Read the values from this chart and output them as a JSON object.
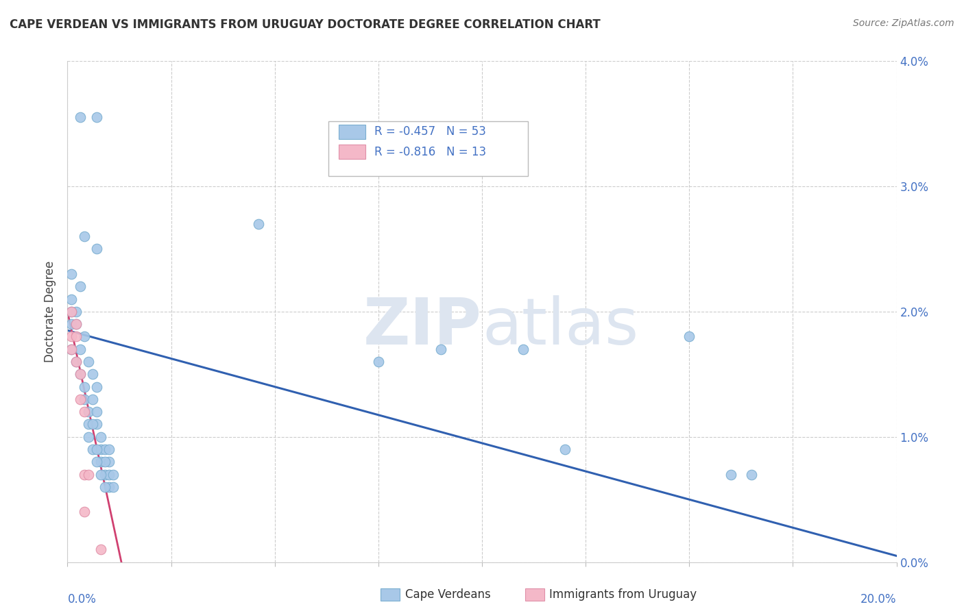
{
  "title": "CAPE VERDEAN VS IMMIGRANTS FROM URUGUAY DOCTORATE DEGREE CORRELATION CHART",
  "source": "Source: ZipAtlas.com",
  "ylabel": "Doctorate Degree",
  "xlim": [
    0.0,
    0.2
  ],
  "ylim": [
    0.0,
    0.04
  ],
  "watermark": "ZIPatlas",
  "blue_color": "#a8c8e8",
  "pink_color": "#f4b8c8",
  "blue_edge_color": "#7aaed0",
  "pink_edge_color": "#e090a8",
  "blue_line_color": "#3060b0",
  "pink_line_color": "#d04070",
  "blue_scatter": [
    [
      0.003,
      0.0355
    ],
    [
      0.007,
      0.0355
    ],
    [
      0.004,
      0.026
    ],
    [
      0.007,
      0.025
    ],
    [
      0.001,
      0.023
    ],
    [
      0.003,
      0.022
    ],
    [
      0.001,
      0.021
    ],
    [
      0.002,
      0.02
    ],
    [
      0.001,
      0.019
    ],
    [
      0.001,
      0.02
    ],
    [
      0.002,
      0.019
    ],
    [
      0.004,
      0.018
    ],
    [
      0.001,
      0.017
    ],
    [
      0.003,
      0.017
    ],
    [
      0.002,
      0.016
    ],
    [
      0.005,
      0.016
    ],
    [
      0.003,
      0.015
    ],
    [
      0.006,
      0.015
    ],
    [
      0.004,
      0.014
    ],
    [
      0.007,
      0.014
    ],
    [
      0.004,
      0.013
    ],
    [
      0.006,
      0.013
    ],
    [
      0.005,
      0.012
    ],
    [
      0.007,
      0.012
    ],
    [
      0.005,
      0.011
    ],
    [
      0.007,
      0.011
    ],
    [
      0.006,
      0.011
    ],
    [
      0.005,
      0.01
    ],
    [
      0.008,
      0.01
    ],
    [
      0.006,
      0.009
    ],
    [
      0.008,
      0.009
    ],
    [
      0.009,
      0.009
    ],
    [
      0.007,
      0.009
    ],
    [
      0.01,
      0.009
    ],
    [
      0.008,
      0.008
    ],
    [
      0.01,
      0.008
    ],
    [
      0.009,
      0.008
    ],
    [
      0.007,
      0.008
    ],
    [
      0.009,
      0.007
    ],
    [
      0.01,
      0.007
    ],
    [
      0.011,
      0.007
    ],
    [
      0.008,
      0.007
    ],
    [
      0.01,
      0.006
    ],
    [
      0.011,
      0.006
    ],
    [
      0.009,
      0.006
    ],
    [
      0.046,
      0.027
    ],
    [
      0.075,
      0.016
    ],
    [
      0.09,
      0.017
    ],
    [
      0.11,
      0.017
    ],
    [
      0.12,
      0.009
    ],
    [
      0.15,
      0.018
    ],
    [
      0.16,
      0.007
    ],
    [
      0.165,
      0.007
    ]
  ],
  "pink_scatter": [
    [
      0.001,
      0.02
    ],
    [
      0.002,
      0.019
    ],
    [
      0.001,
      0.018
    ],
    [
      0.002,
      0.018
    ],
    [
      0.001,
      0.017
    ],
    [
      0.002,
      0.016
    ],
    [
      0.003,
      0.015
    ],
    [
      0.003,
      0.013
    ],
    [
      0.004,
      0.012
    ],
    [
      0.004,
      0.007
    ],
    [
      0.005,
      0.007
    ],
    [
      0.004,
      0.004
    ],
    [
      0.008,
      0.001
    ]
  ],
  "blue_trend_x": [
    0.0,
    0.2
  ],
  "blue_trend_y": [
    0.0185,
    0.0005
  ],
  "pink_trend_x": [
    0.0,
    0.013
  ],
  "pink_trend_y": [
    0.02,
    0.0
  ]
}
